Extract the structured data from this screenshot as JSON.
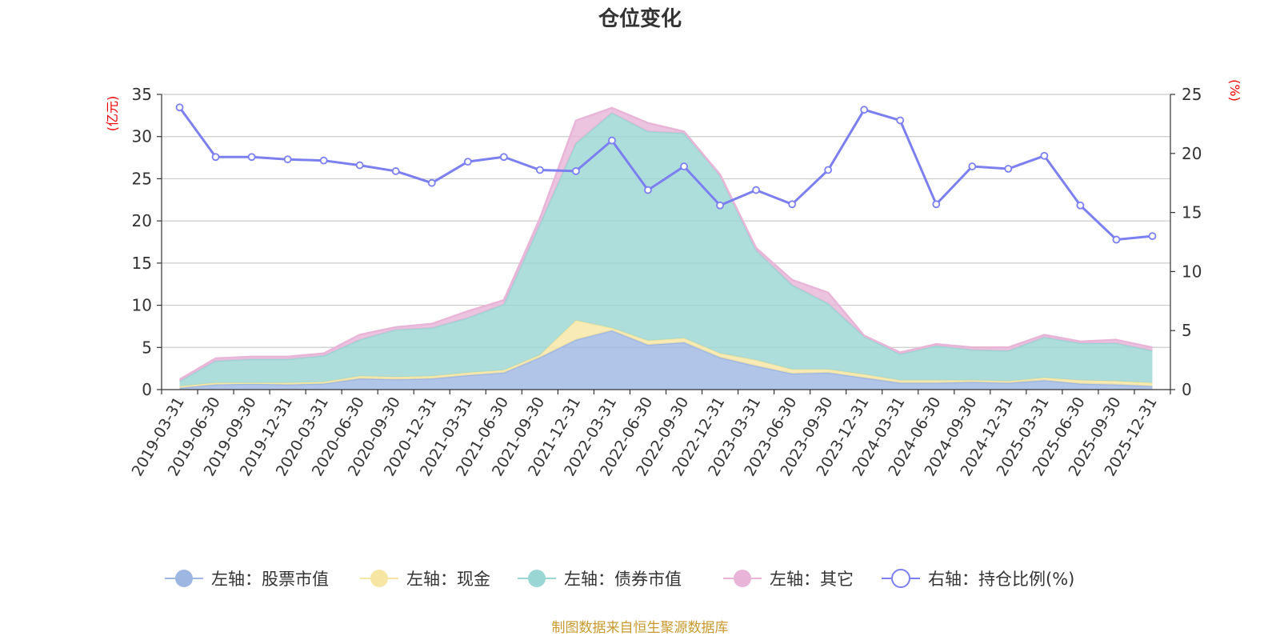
{
  "chart_data": {
    "type": "area",
    "title": "仓位变化",
    "left_unit": "(亿元)",
    "right_unit": "(%)",
    "left_ylim": [
      0,
      35
    ],
    "left_ticks": [
      "0",
      "5",
      "10",
      "15",
      "20",
      "25",
      "30",
      "35"
    ],
    "right_ylim": [
      0,
      25
    ],
    "right_ticks": [
      "0",
      "5",
      "10",
      "15",
      "20",
      "25"
    ],
    "grid": true,
    "legend_position": "bottom",
    "x": [
      "2019-03-31",
      "2019-06-30",
      "2019-09-30",
      "2019-12-31",
      "2020-03-31",
      "2020-06-30",
      "2020-09-30",
      "2020-12-31",
      "2021-03-31",
      "2021-06-30",
      "2021-09-30",
      "2021-12-31",
      "2022-03-31",
      "2022-06-30",
      "2022-09-30",
      "2022-12-31",
      "2023-03-31",
      "2023-06-30",
      "2023-09-30",
      "2023-12-31",
      "2024-03-31",
      "2024-06-30",
      "2024-09-30",
      "2024-12-31",
      "2025-03-31",
      "2025-06-30",
      "2025-09-30",
      "2025-12-31"
    ],
    "series": [
      {
        "name": "左轴：股票市值",
        "axis": "left",
        "kind": "stacked-area",
        "color": "#9db6e2",
        "values": [
          0.2,
          0.6,
          0.7,
          0.6,
          0.7,
          1.3,
          1.2,
          1.3,
          1.7,
          2.0,
          3.8,
          5.9,
          7.0,
          5.3,
          5.6,
          3.8,
          2.8,
          1.9,
          2.0,
          1.4,
          0.8,
          0.8,
          0.9,
          0.8,
          1.1,
          0.7,
          0.6,
          0.4
        ]
      },
      {
        "name": "左轴：现金",
        "axis": "left",
        "kind": "stacked-area",
        "color": "#f7e6a3",
        "values": [
          0.2,
          0.2,
          0.1,
          0.2,
          0.2,
          0.3,
          0.3,
          0.3,
          0.3,
          0.3,
          0.3,
          2.3,
          0.3,
          0.5,
          0.5,
          0.5,
          0.7,
          0.5,
          0.4,
          0.4,
          0.3,
          0.3,
          0.2,
          0.2,
          0.3,
          0.4,
          0.4,
          0.4
        ]
      },
      {
        "name": "左轴：债券市值",
        "axis": "left",
        "kind": "stacked-area",
        "color": "#9ad6d3",
        "values": [
          0.6,
          2.6,
          2.8,
          2.8,
          3.1,
          4.3,
          5.6,
          5.7,
          6.5,
          7.8,
          15.5,
          21.0,
          25.5,
          24.8,
          24.3,
          21.1,
          13.0,
          10.0,
          7.8,
          4.5,
          3.1,
          4.1,
          3.6,
          3.6,
          4.8,
          4.4,
          4.5,
          3.8
        ]
      },
      {
        "name": "左轴：其它",
        "axis": "left",
        "kind": "stacked-area",
        "color": "#e8b5d8",
        "values": [
          0.2,
          0.3,
          0.3,
          0.3,
          0.3,
          0.6,
          0.3,
          0.5,
          0.8,
          0.5,
          0.7,
          2.7,
          0.6,
          1.0,
          0.2,
          0.1,
          0.3,
          0.6,
          1.3,
          0.1,
          0.2,
          0.2,
          0.3,
          0.4,
          0.3,
          0.2,
          0.4,
          0.4
        ]
      },
      {
        "name": "右轴：持仓比例(%)",
        "axis": "right",
        "kind": "line",
        "color": "#7b7ff0",
        "values": [
          23.9,
          19.7,
          19.7,
          19.5,
          19.4,
          19.0,
          18.5,
          17.5,
          19.3,
          19.7,
          18.6,
          18.5,
          21.1,
          16.9,
          18.9,
          15.6,
          16.9,
          15.7,
          18.6,
          23.7,
          22.8,
          15.7,
          18.9,
          18.7,
          19.8,
          15.6,
          12.7,
          13.0
        ]
      }
    ],
    "source": "制图数据来自恒生聚源数据库"
  }
}
